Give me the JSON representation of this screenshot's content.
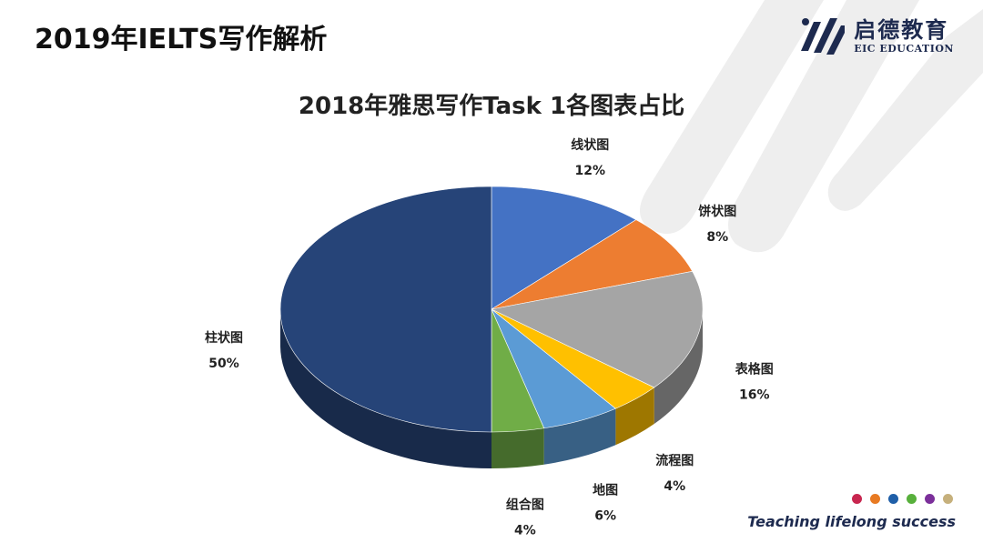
{
  "slide_title": "2019年IELTS写作解析",
  "brand": {
    "name_cn": "启德教育",
    "name_en": "EIC EDUCATION",
    "color": "#1d2a4f"
  },
  "tagline": "Teaching lifelong success",
  "dots": [
    "#c8264f",
    "#e87a22",
    "#1f5fa8",
    "#58b03c",
    "#7b2f9a",
    "#c6b07c"
  ],
  "chart_data": {
    "type": "pie",
    "title": "2018年雅思写作Task 1各图表占比",
    "slices": [
      {
        "label": "线状图",
        "value": 12,
        "display": "12%",
        "color": "#4472c4"
      },
      {
        "label": "饼状图",
        "value": 8,
        "display": "8%",
        "color": "#ed7d31"
      },
      {
        "label": "表格图",
        "value": 16,
        "display": "16%",
        "color": "#a5a5a5"
      },
      {
        "label": "流程图",
        "value": 4,
        "display": "4%",
        "color": "#ffc000"
      },
      {
        "label": "地图",
        "value": 6,
        "display": "6%",
        "color": "#5b9bd5"
      },
      {
        "label": "组合图",
        "value": 4,
        "display": "4%",
        "color": "#70ad47"
      },
      {
        "label": "柱状图",
        "value": 50,
        "display": "50%",
        "color": "#264478"
      }
    ],
    "start_angle": "12 o'clock, clockwise",
    "style": "3D tilted"
  }
}
